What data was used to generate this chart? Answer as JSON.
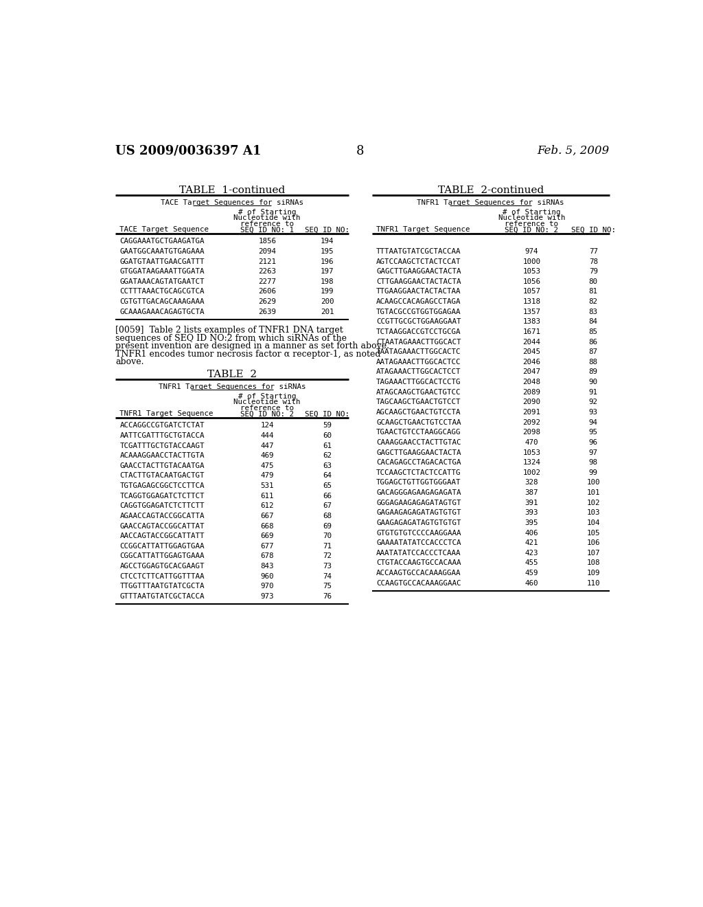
{
  "header_left": "US 2009/0036397 A1",
  "header_right": "Feb. 5, 2009",
  "page_number": "8",
  "table1_title": "TABLE  1-continued",
  "table1_subtitle": "TACE Target Sequences for siRNAs",
  "table1_col1_header": "TACE Target Sequence",
  "table1_col2_header_lines": [
    "# of Starting",
    "Nucleotide with",
    "reference to",
    "SEQ ID NO: 1"
  ],
  "table1_col3_header": "SEQ ID NO:",
  "table1_data": [
    [
      "CAGGAAATGCTGAAGATGA",
      "1856",
      "194"
    ],
    [
      "GAATGGCAAATGTGAGAAA",
      "2094",
      "195"
    ],
    [
      "GGATGTAATTGAACGATTT",
      "2121",
      "196"
    ],
    [
      "GTGGATAAGAAATTGGATA",
      "2263",
      "197"
    ],
    [
      "GGATAAACAGTATGAATCT",
      "2277",
      "198"
    ],
    [
      "CCTTTAAACTGCAGCGTCA",
      "2606",
      "199"
    ],
    [
      "CGTGTTGACAGCAAAGAAA",
      "2629",
      "200"
    ],
    [
      "GCAAAGAAACAGAGTGCTA",
      "2639",
      "201"
    ]
  ],
  "paragraph_lines": [
    "[0059]  Table 2 lists examples of TNFR1 DNA target",
    "sequences of SEQ ID NO:2 from which siRNAs of the",
    "present invention are designed in a manner as set forth above.",
    "TNFR1 encodes tumor necrosis factor α receptor-1, as noted",
    "above."
  ],
  "table2_title": "TABLE  2",
  "table2_subtitle": "TNFR1 Target Sequences for siRNAs",
  "table2_col1_header": "TNFR1 Target Sequence",
  "table2_col2_header_lines": [
    "# of Starting",
    "Nucleotide with",
    "reference to",
    "SEQ ID NO: 2"
  ],
  "table2_col3_header": "SEQ ID NO:",
  "table2_data": [
    [
      "ACCAGGCCGTGATCTCTAT",
      "124",
      "59"
    ],
    [
      "AATTCGATTTGCTGTACCA",
      "444",
      "60"
    ],
    [
      "TCGATTTGCTGTACCAAGT",
      "447",
      "61"
    ],
    [
      "ACAAAGGAACCTACTTGTA",
      "469",
      "62"
    ],
    [
      "GAACCTACTTGTACAATGA",
      "475",
      "63"
    ],
    [
      "CTACTTGTACAATGACTGT",
      "479",
      "64"
    ],
    [
      "TGTGAGAGCGGCTCCTTCA",
      "531",
      "65"
    ],
    [
      "TCAGGTGGAGATCTCTTCT",
      "611",
      "66"
    ],
    [
      "CAGGTGGAGATCTCTTCTT",
      "612",
      "67"
    ],
    [
      "AGAACCAGTACCGGCATTA",
      "667",
      "68"
    ],
    [
      "GAACCAGTACCGGCATTAT",
      "668",
      "69"
    ],
    [
      "AACCAGTACCGGCATTATT",
      "669",
      "70"
    ],
    [
      "CCGGCATTATTGGAGTGAA",
      "677",
      "71"
    ],
    [
      "CGGCATTATTGGAGTGAAA",
      "678",
      "72"
    ],
    [
      "AGCCTGGAGTGCACGAAGT",
      "843",
      "73"
    ],
    [
      "CTCCTCTTCATTGGTTTAA",
      "960",
      "74"
    ],
    [
      "TTGGTTTAATGTATCGCTA",
      "970",
      "75"
    ],
    [
      "GTTTAATGTATCGCTACCA",
      "973",
      "76"
    ]
  ],
  "table2c_title": "TABLE  2-continued",
  "table2c_subtitle": "TNFR1 Target Sequences for siRNAs",
  "table2c_col1_header": "TNFR1 Target Sequence",
  "table2c_col2_header_lines": [
    "# of Starting",
    "Nucleotide with",
    "reference to",
    "SEQ ID NO: 2"
  ],
  "table2c_col3_header": "SEQ ID NO:",
  "table2c_data": [
    [
      "TTTAATGTATCGCTACCAA",
      "974",
      "77"
    ],
    [
      "AGTCCAAGCTCTACTCCAT",
      "1000",
      "78"
    ],
    [
      "GAGCTTGAAGGAACTACTA",
      "1053",
      "79"
    ],
    [
      "CTTGAAGGAACTACTACTA",
      "1056",
      "80"
    ],
    [
      "TTGAAGGAACTACTACTAA",
      "1057",
      "81"
    ],
    [
      "ACAAGCCACAGAGCCTAGA",
      "1318",
      "82"
    ],
    [
      "TGTACGCCGTGGTGGAGAA",
      "1357",
      "83"
    ],
    [
      "CCGTTGCGCTGGAAGGAAT",
      "1383",
      "84"
    ],
    [
      "TCTAAGGACCGTCCTGCGA",
      "1671",
      "85"
    ],
    [
      "CTAATAGAAACTTGGCACT",
      "2044",
      "86"
    ],
    [
      "TAATAGAAACTTGGCACTC",
      "2045",
      "87"
    ],
    [
      "AATAGAAACTTGGCACTCC",
      "2046",
      "88"
    ],
    [
      "ATAGAAACTTGGCACTCCT",
      "2047",
      "89"
    ],
    [
      "TAGAAACTTGGCACTCCTG",
      "2048",
      "90"
    ],
    [
      "ATAGCAAGCTGAACTGTCC",
      "2089",
      "91"
    ],
    [
      "TAGCAAGCTGAACTGTCCT",
      "2090",
      "92"
    ],
    [
      "AGCAAGCTGAACTGTCCTA",
      "2091",
      "93"
    ],
    [
      "GCAAGCTGAACTGTCCTAA",
      "2092",
      "94"
    ],
    [
      "TGAACTGTCCTAAGGCAGG",
      "2098",
      "95"
    ],
    [
      "CAAAGGAACCTACTTGTAC",
      "470",
      "96"
    ],
    [
      "GAGCTTGAAGGAACTACTA",
      "1053",
      "97"
    ],
    [
      "CACAGAGCCTAGACACTGA",
      "1324",
      "98"
    ],
    [
      "TCCAAGCTCTACTCCATTG",
      "1002",
      "99"
    ],
    [
      "TGGAGCTGTTGGTGGGAAT",
      "328",
      "100"
    ],
    [
      "GACAGGGAGAAGAGAGATA",
      "387",
      "101"
    ],
    [
      "GGGAGAAGAGAGATAGTGT",
      "391",
      "102"
    ],
    [
      "GAGAAGAGAGATAGTGTGT",
      "393",
      "103"
    ],
    [
      "GAAGAGAGATAGTGTGTGT",
      "395",
      "104"
    ],
    [
      "GTGTGTGTCCCCAAGGAAA",
      "406",
      "105"
    ],
    [
      "GAAAATATATCCACCCTCA",
      "421",
      "106"
    ],
    [
      "AAATATATCCACCCTCAAA",
      "423",
      "107"
    ],
    [
      "CTGTACCAAGTGCCACAAA",
      "455",
      "108"
    ],
    [
      "ACCAAGTGCCACAAAGGAA",
      "459",
      "109"
    ],
    [
      "CCAAGTGCCACAAAGGAAC",
      "460",
      "110"
    ]
  ]
}
